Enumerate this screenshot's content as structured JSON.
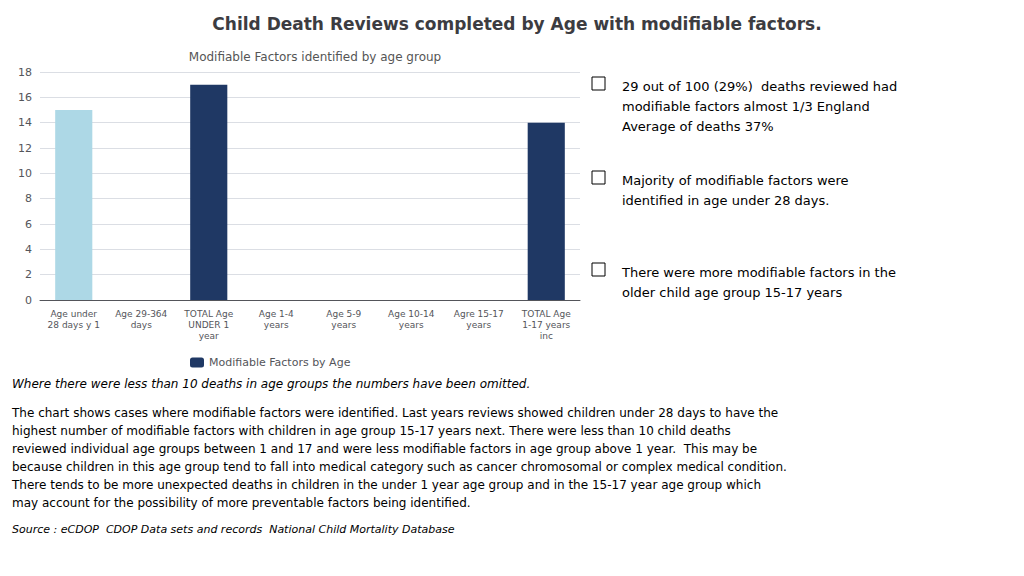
{
  "chart_data": {
    "type": "bar",
    "title": "Child Death Reviews completed by Age with modifiable factors.",
    "subtitle": "Modifiable Factors identified by age group",
    "categories": [
      "Age under\n28 days y 1",
      "Age 29-364\ndays",
      "TOTAL Age\nUNDER 1\nyear",
      "Age 1-4\nyears",
      "Age 5-9\nyears",
      "Age 10-14\nyears",
      "Agre 15-17\nyears",
      "TOTAL Age\n1-17 years\ninc"
    ],
    "series": [
      {
        "name": "Modifiable Factors by Age",
        "color": "#1f3864",
        "colors": [
          "#add8e6",
          "#1f3864",
          "#1f3864",
          "#1f3864",
          "#1f3864",
          "#1f3864",
          "#1f3864",
          "#1f3864"
        ],
        "values": [
          15,
          0,
          17,
          0,
          0,
          0,
          0,
          14
        ]
      }
    ],
    "ylim": [
      0,
      18
    ],
    "yticks": [
      0,
      2,
      4,
      6,
      8,
      10,
      12,
      14,
      16,
      18
    ],
    "grid": true,
    "legend": "bottom",
    "bullet_points": [
      "29 out of 100 (29%)  deaths reviewed had\nmodifiable factors almost 1/3 England\nAverage of deaths 37%",
      "Majority of modifiable factors were\nidentified in age under 28 days.",
      "There were more modifiable factors in the\nolder child age group 15-17 years"
    ],
    "note": "Where there were less than 10 deaths in age groups the numbers have been omitted.",
    "body_text": "The chart shows cases where modifiable factors were identified. Last years reviews showed children under 28 days to have the\nhighest number of modifiable factors with children in age group 15-17 years next. There were less than 10 child deaths\nreviewed individual age groups between 1 and 17 and were less modifiable factors in age group above 1 year.  This may be\nbecause children in this age group tend to fall into medical category such as cancer chromosomal or complex medical condition.\nThere tends to be more unexpected deaths in children in the under 1 year age group and in the 15-17 year age group which\nmay account for the possibility of more preventable factors being identified.",
    "source": "Source : eCDOP  CDOP Data sets and records  National Child Mortality Database"
  }
}
